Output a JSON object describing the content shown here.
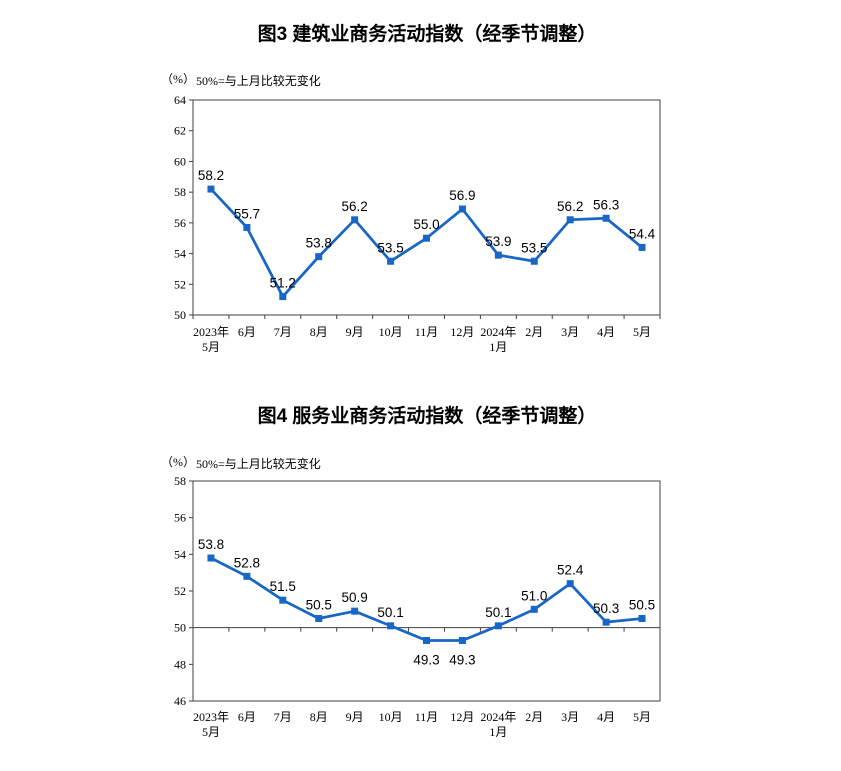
{
  "chart_data": [
    {
      "type": "line",
      "title": "图3  建筑业商务活动指数（经季节调整）",
      "unit_label": "（%）",
      "note": "50%=与上月比较无变化",
      "categories": [
        "2023年\n5月",
        "6月",
        "7月",
        "8月",
        "9月",
        "10月",
        "11月",
        "12月",
        "2024年\n1月",
        "2月",
        "3月",
        "4月",
        "5月"
      ],
      "values": [
        58.2,
        55.7,
        51.2,
        53.8,
        56.2,
        53.5,
        55.0,
        56.9,
        53.9,
        53.5,
        56.2,
        56.3,
        54.4
      ],
      "ylim": [
        50,
        64
      ],
      "yticks": [
        50,
        52,
        54,
        56,
        58,
        60,
        62,
        64
      ],
      "ref_line": null,
      "grid": false,
      "legend": "none",
      "line_color": "#1766C8",
      "marker": "square",
      "axis_color": "#404040",
      "label_color": "#000000"
    },
    {
      "type": "line",
      "title": "图4  服务业商务活动指数（经季节调整）",
      "unit_label": "（%）",
      "note": "50%=与上月比较无变化",
      "categories": [
        "2023年\n5月",
        "6月",
        "7月",
        "8月",
        "9月",
        "10月",
        "11月",
        "12月",
        "2024年\n1月",
        "2月",
        "3月",
        "4月",
        "5月"
      ],
      "values": [
        53.8,
        52.8,
        51.5,
        50.5,
        50.9,
        50.1,
        49.3,
        49.3,
        50.1,
        51.0,
        52.4,
        50.3,
        50.5
      ],
      "ylim": [
        46,
        58
      ],
      "yticks": [
        46,
        48,
        50,
        52,
        54,
        56,
        58
      ],
      "ref_line": 50,
      "grid": false,
      "legend": "none",
      "line_color": "#1766C8",
      "marker": "square",
      "axis_color": "#404040",
      "label_color": "#000000"
    }
  ]
}
